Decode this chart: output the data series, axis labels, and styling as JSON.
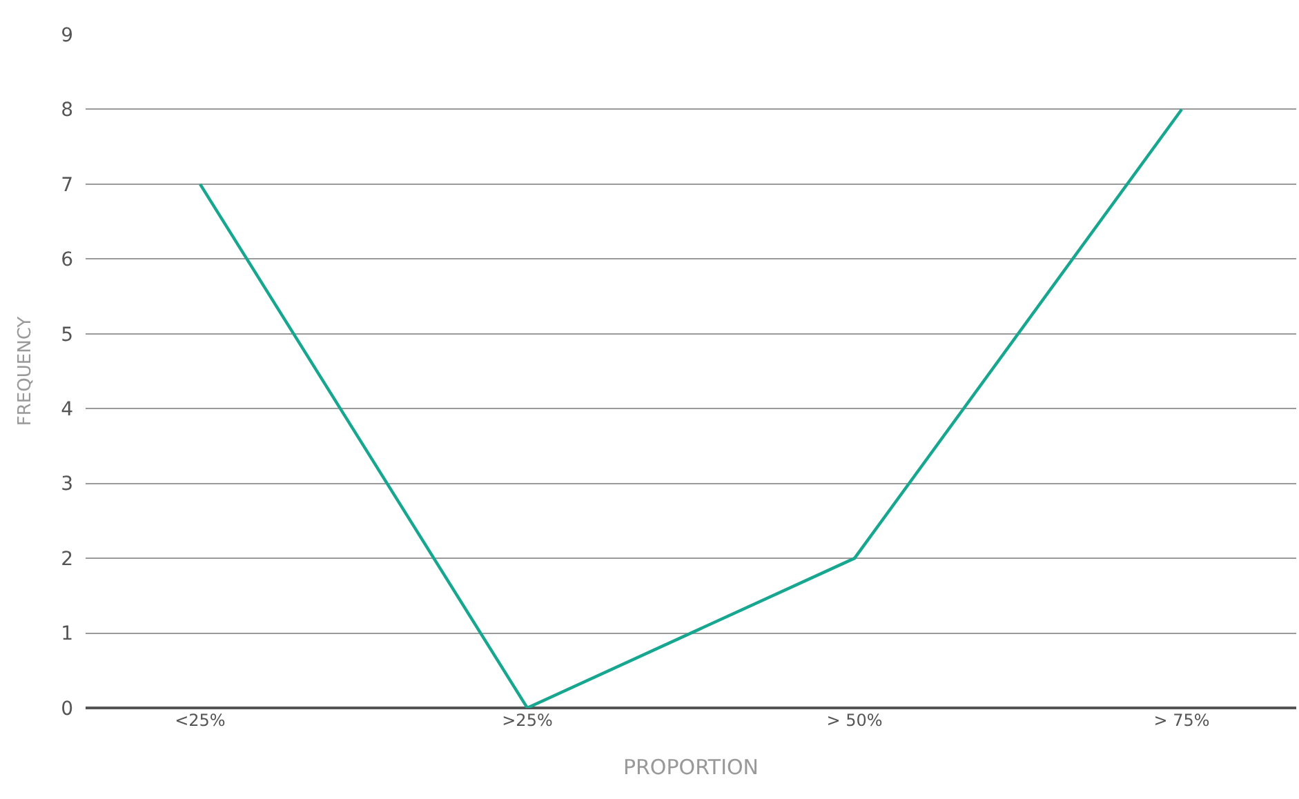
{
  "chart_data": {
    "type": "line",
    "xlabel": "PROPORTION",
    "ylabel": "FREQUENCY",
    "categories": [
      "<25%",
      ">25%",
      "> 50%",
      "> 75%"
    ],
    "series": [
      {
        "color": "#17a68f",
        "values": [
          7,
          0,
          2,
          8
        ]
      }
    ],
    "ylim": [
      0,
      9
    ],
    "yticks": [
      0,
      1,
      2,
      3,
      4,
      5,
      6,
      7,
      8,
      9
    ],
    "grid": "y",
    "legend": false,
    "marker": "none",
    "line_style": "solid"
  }
}
